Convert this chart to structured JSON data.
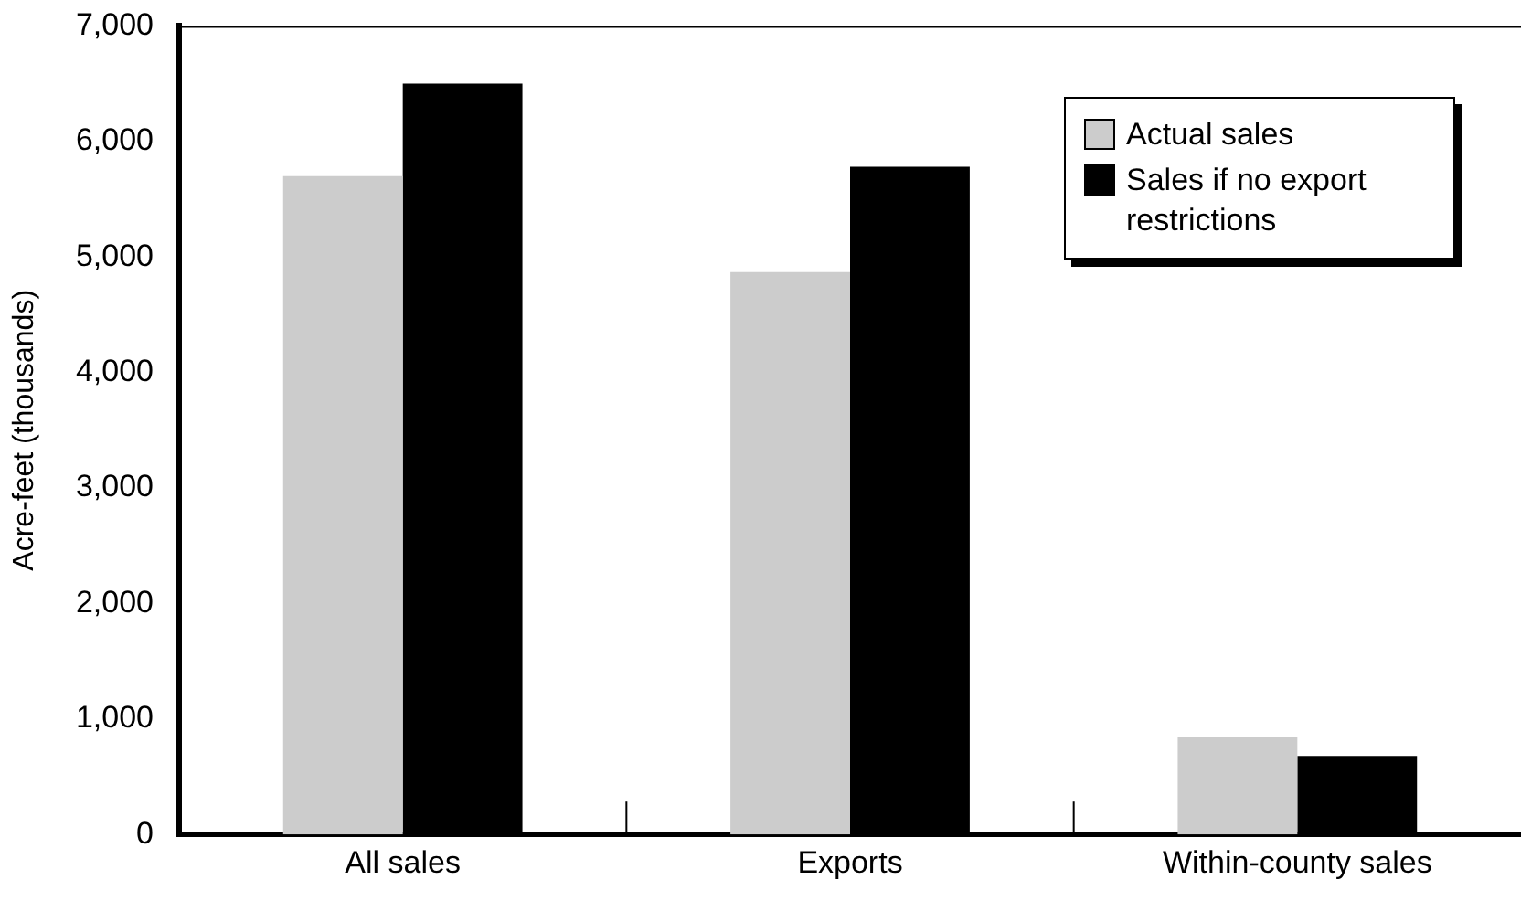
{
  "chart_data": {
    "type": "bar",
    "ylabel": "Acre-feet (thousands)",
    "categories": [
      "All sales",
      "Exports",
      "Within-county sales"
    ],
    "series": [
      {
        "name": "Actual sales",
        "color": "#cccccc",
        "values": [
          5700,
          4870,
          840
        ]
      },
      {
        "name": "Sales if no export restrictions",
        "color": "#000000",
        "values": [
          6500,
          5780,
          680
        ]
      }
    ],
    "ylim": [
      0,
      7000
    ],
    "yticks": [
      {
        "value": 0,
        "label": "0"
      },
      {
        "value": 1000,
        "label": "1,000"
      },
      {
        "value": 2000,
        "label": "2,000"
      },
      {
        "value": 3000,
        "label": "3,000"
      },
      {
        "value": 4000,
        "label": "4,000"
      },
      {
        "value": 5000,
        "label": "5,000"
      },
      {
        "value": 6000,
        "label": "6,000"
      },
      {
        "value": 7000,
        "label": "7,000"
      }
    ],
    "grid": false,
    "legend": "top right"
  }
}
